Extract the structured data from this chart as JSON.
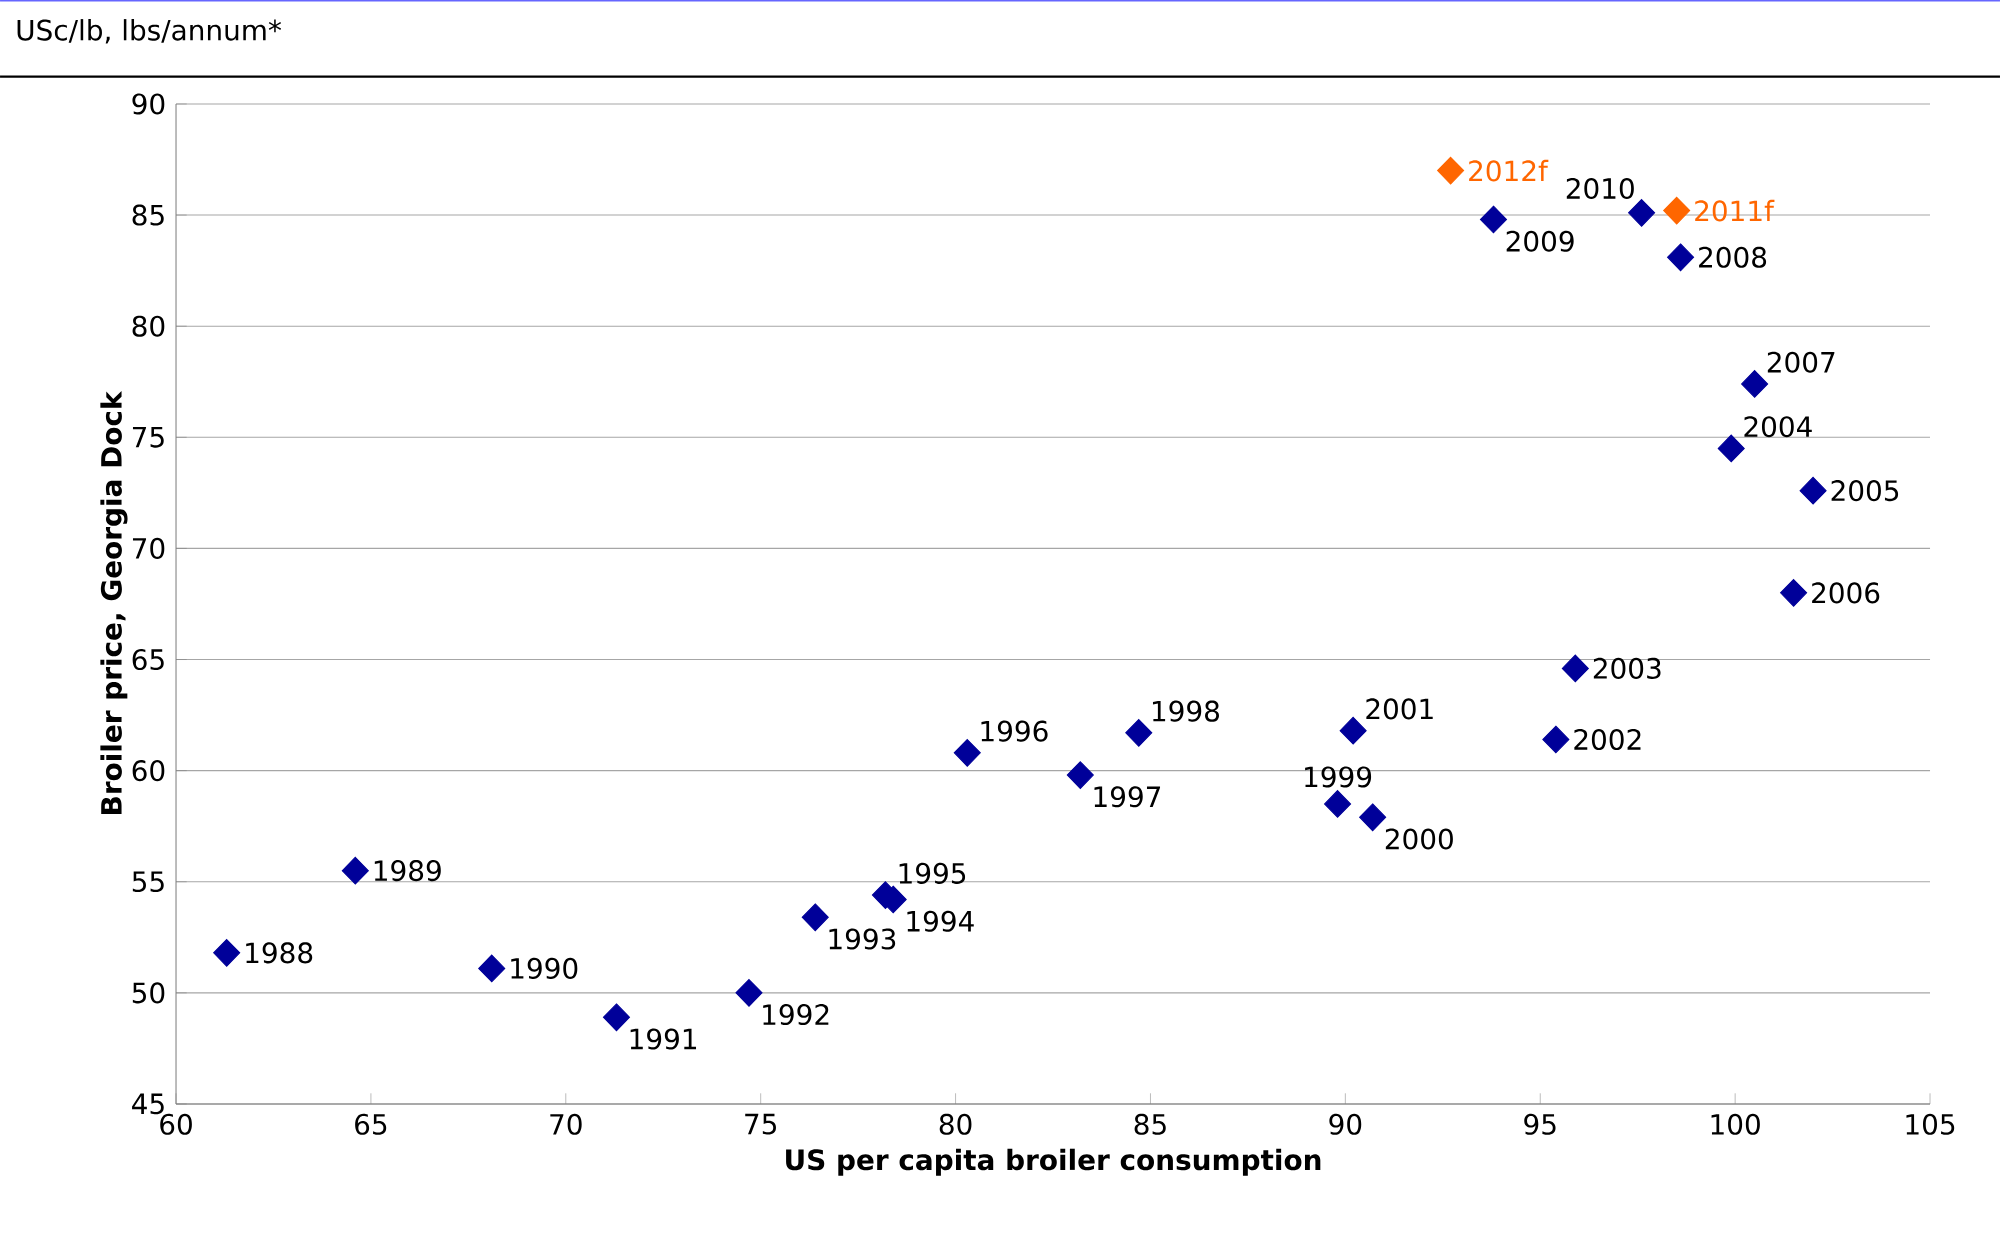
{
  "chart_data": {
    "type": "scatter",
    "title": "USc/lb, lbs/annum*",
    "xlabel": "US per capita broiler consumption",
    "ylabel": "Broiler price, Georgia Dock",
    "xlim": [
      60,
      105
    ],
    "xticks": [
      60,
      65,
      70,
      75,
      80,
      85,
      90,
      95,
      100,
      105
    ],
    "ylim": [
      45,
      90
    ],
    "yticks": [
      45,
      50,
      55,
      60,
      65,
      70,
      75,
      80,
      85,
      90
    ],
    "grid": "y",
    "marker": "diamond",
    "series": [
      {
        "color": "#000099",
        "x": [
          61.3,
          64.6,
          68.1,
          71.3,
          74.7,
          76.4,
          78.4,
          78.2,
          80.3,
          83.2,
          84.7,
          89.8,
          90.7,
          90.2,
          95.4,
          95.9,
          99.9,
          102.0,
          101.5,
          100.5,
          98.6,
          93.8,
          97.6
        ],
        "values": [
          51.8,
          55.5,
          51.1,
          48.9,
          50.0,
          53.4,
          54.2,
          54.4,
          60.8,
          59.8,
          61.7,
          58.5,
          57.9,
          61.8,
          61.4,
          64.6,
          74.5,
          72.6,
          68.0,
          77.4,
          83.1,
          84.8,
          85.1
        ]
      },
      {
        "color": "#ff6600",
        "x": [
          98.5,
          92.7
        ],
        "values": [
          85.2,
          87.0
        ]
      }
    ],
    "annotations": [
      {
        "text": "1988",
        "x": 61.3,
        "y": 51.8
      },
      {
        "text": "1989",
        "x": 64.6,
        "y": 55.5
      },
      {
        "text": "1990",
        "x": 68.1,
        "y": 51.1
      },
      {
        "text": "1991",
        "x": 71.3,
        "y": 48.9
      },
      {
        "text": "1992",
        "x": 74.7,
        "y": 50.0
      },
      {
        "text": "1993",
        "x": 76.4,
        "y": 53.4
      },
      {
        "text": "1994",
        "x": 78.4,
        "y": 54.2
      },
      {
        "text": "1995",
        "x": 78.2,
        "y": 54.4
      },
      {
        "text": "1996",
        "x": 80.3,
        "y": 60.8
      },
      {
        "text": "1997",
        "x": 83.2,
        "y": 59.8
      },
      {
        "text": "1998",
        "x": 84.7,
        "y": 61.7
      },
      {
        "text": "1999",
        "x": 89.8,
        "y": 58.5
      },
      {
        "text": "2000",
        "x": 90.7,
        "y": 57.9
      },
      {
        "text": "2001",
        "x": 90.2,
        "y": 61.8
      },
      {
        "text": "2002",
        "x": 95.4,
        "y": 61.4
      },
      {
        "text": "2003",
        "x": 95.9,
        "y": 64.6
      },
      {
        "text": "2004",
        "x": 99.9,
        "y": 74.5
      },
      {
        "text": "2005",
        "x": 102.0,
        "y": 72.6
      },
      {
        "text": "2006",
        "x": 101.5,
        "y": 68.0
      },
      {
        "text": "2007",
        "x": 100.5,
        "y": 77.4
      },
      {
        "text": "2008",
        "x": 98.6,
        "y": 83.1
      },
      {
        "text": "2009",
        "x": 93.8,
        "y": 84.8
      },
      {
        "text": "2010",
        "x": 97.6,
        "y": 85.1
      },
      {
        "text": "2011f",
        "x": 98.5,
        "y": 85.2
      },
      {
        "text": "2012f",
        "x": 92.7,
        "y": 87.0
      }
    ]
  }
}
